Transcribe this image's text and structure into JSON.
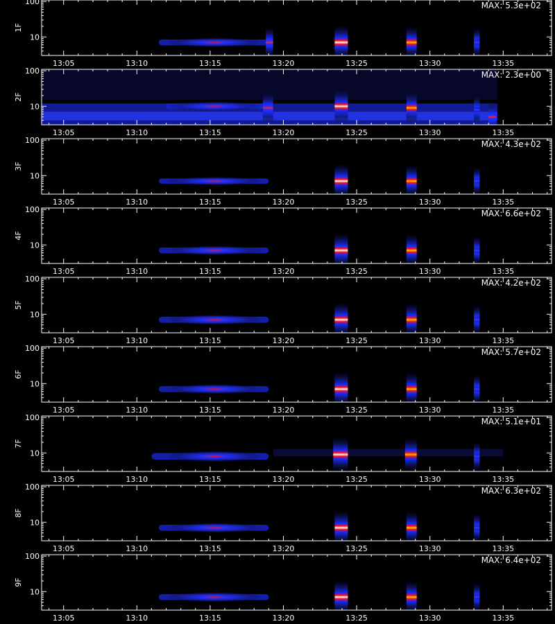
{
  "chart_data": {
    "type": "heatmap",
    "xlabel": "",
    "ylabel_scale": "log",
    "y_tick_labels": [
      "10",
      "100"
    ],
    "ylim": [
      3,
      110
    ],
    "x_tick_labels": [
      "13:05",
      "13:10",
      "13:15",
      "13:20",
      "13:25",
      "13:30",
      "13:35"
    ],
    "x_ticks_minutes": [
      5,
      10,
      15,
      20,
      25,
      30,
      35
    ],
    "xlim_minutes": [
      3.5,
      38.3
    ],
    "colormap": [
      "#000000",
      "#10105a",
      "#1a2cff",
      "#ff1010",
      "#ffd000",
      "#ffffff"
    ],
    "panels": [
      {
        "name": "1F",
        "max_label": "MAX: 5.3e+02",
        "bursts": [
          {
            "x0": 11.5,
            "x1": 19.0,
            "y": 7,
            "intensity": 0.55,
            "peak": 15.3
          },
          {
            "x0": 18.8,
            "x1": 19.3,
            "y": 7,
            "intensity": 0.7
          },
          {
            "x0": 23.5,
            "x1": 24.4,
            "y": 7,
            "intensity": 1.0
          },
          {
            "x0": 28.4,
            "x1": 29.1,
            "y": 7,
            "intensity": 0.85
          },
          {
            "x0": 33.0,
            "x1": 33.4,
            "y": 7,
            "intensity": 0.6
          }
        ]
      },
      {
        "name": "2F",
        "max_label": "MAX: 2.3e+00",
        "background": true,
        "bursts": [
          {
            "x0": 12.0,
            "x1": 19.0,
            "y": 10,
            "intensity": 0.55,
            "peak": 15.3
          },
          {
            "x0": 18.6,
            "x1": 19.3,
            "y": 9,
            "intensity": 0.7
          },
          {
            "x0": 23.5,
            "x1": 24.4,
            "y": 10,
            "intensity": 0.95
          },
          {
            "x0": 28.4,
            "x1": 29.1,
            "y": 9,
            "intensity": 0.8
          },
          {
            "x0": 33.0,
            "x1": 33.4,
            "y": 8,
            "intensity": 0.55
          },
          {
            "x0": 34.0,
            "x1": 34.5,
            "y": 5,
            "intensity": 0.7
          }
        ]
      },
      {
        "name": "3F",
        "max_label": "MAX: 4.3e+02",
        "bursts": [
          {
            "x0": 11.5,
            "x1": 19.0,
            "y": 7,
            "intensity": 0.45,
            "peak": 15.3
          },
          {
            "x0": 23.5,
            "x1": 24.4,
            "y": 7,
            "intensity": 1.0
          },
          {
            "x0": 28.4,
            "x1": 29.1,
            "y": 7,
            "intensity": 0.85
          },
          {
            "x0": 33.0,
            "x1": 33.4,
            "y": 7,
            "intensity": 0.55
          }
        ]
      },
      {
        "name": "4F",
        "max_label": "MAX: 6.6e+02",
        "bursts": [
          {
            "x0": 11.5,
            "x1": 19.0,
            "y": 7,
            "intensity": 0.55,
            "peak": 15.3
          },
          {
            "x0": 23.5,
            "x1": 24.4,
            "y": 7,
            "intensity": 1.0
          },
          {
            "x0": 28.4,
            "x1": 29.1,
            "y": 7,
            "intensity": 0.85
          },
          {
            "x0": 33.0,
            "x1": 33.4,
            "y": 7,
            "intensity": 0.55
          }
        ]
      },
      {
        "name": "5F",
        "max_label": "MAX: 4.2e+02",
        "bursts": [
          {
            "x0": 11.5,
            "x1": 19.0,
            "y": 7,
            "intensity": 0.65,
            "peak": 15.3
          },
          {
            "x0": 23.5,
            "x1": 24.4,
            "y": 7,
            "intensity": 1.0
          },
          {
            "x0": 28.4,
            "x1": 29.1,
            "y": 7,
            "intensity": 0.9
          },
          {
            "x0": 33.0,
            "x1": 33.4,
            "y": 7,
            "intensity": 0.6
          }
        ]
      },
      {
        "name": "6F",
        "max_label": "MAX: 5.7e+02",
        "bursts": [
          {
            "x0": 11.5,
            "x1": 19.0,
            "y": 7,
            "intensity": 0.6,
            "peak": 15.3
          },
          {
            "x0": 23.5,
            "x1": 24.4,
            "y": 7,
            "intensity": 1.0
          },
          {
            "x0": 28.4,
            "x1": 29.1,
            "y": 7,
            "intensity": 0.85
          },
          {
            "x0": 33.0,
            "x1": 33.4,
            "y": 7,
            "intensity": 0.6
          }
        ]
      },
      {
        "name": "7F",
        "max_label": "MAX: 5.1e+01",
        "background_faint": true,
        "bursts": [
          {
            "x0": 11.0,
            "x1": 19.0,
            "y": 8,
            "intensity": 0.75,
            "peak": 15.3
          },
          {
            "x0": 23.4,
            "x1": 24.4,
            "y": 9,
            "intensity": 1.0
          },
          {
            "x0": 28.3,
            "x1": 29.1,
            "y": 9,
            "intensity": 0.9
          },
          {
            "x0": 33.0,
            "x1": 33.4,
            "y": 8,
            "intensity": 0.6
          }
        ]
      },
      {
        "name": "8F",
        "max_label": "MAX: 6.3e+02",
        "bursts": [
          {
            "x0": 11.5,
            "x1": 19.0,
            "y": 7,
            "intensity": 0.6,
            "peak": 15.3
          },
          {
            "x0": 23.5,
            "x1": 24.4,
            "y": 7,
            "intensity": 0.95
          },
          {
            "x0": 28.4,
            "x1": 29.1,
            "y": 7,
            "intensity": 0.85
          },
          {
            "x0": 33.0,
            "x1": 33.4,
            "y": 7,
            "intensity": 0.55
          }
        ]
      },
      {
        "name": "9F",
        "max_label": "MAX: 6.4e+02",
        "bursts": [
          {
            "x0": 11.5,
            "x1": 19.0,
            "y": 7,
            "intensity": 0.6,
            "peak": 15.3
          },
          {
            "x0": 23.5,
            "x1": 24.4,
            "y": 7,
            "intensity": 0.95
          },
          {
            "x0": 28.4,
            "x1": 29.1,
            "y": 7,
            "intensity": 0.85
          },
          {
            "x0": 33.0,
            "x1": 33.4,
            "y": 7,
            "intensity": 0.55
          }
        ]
      }
    ]
  }
}
